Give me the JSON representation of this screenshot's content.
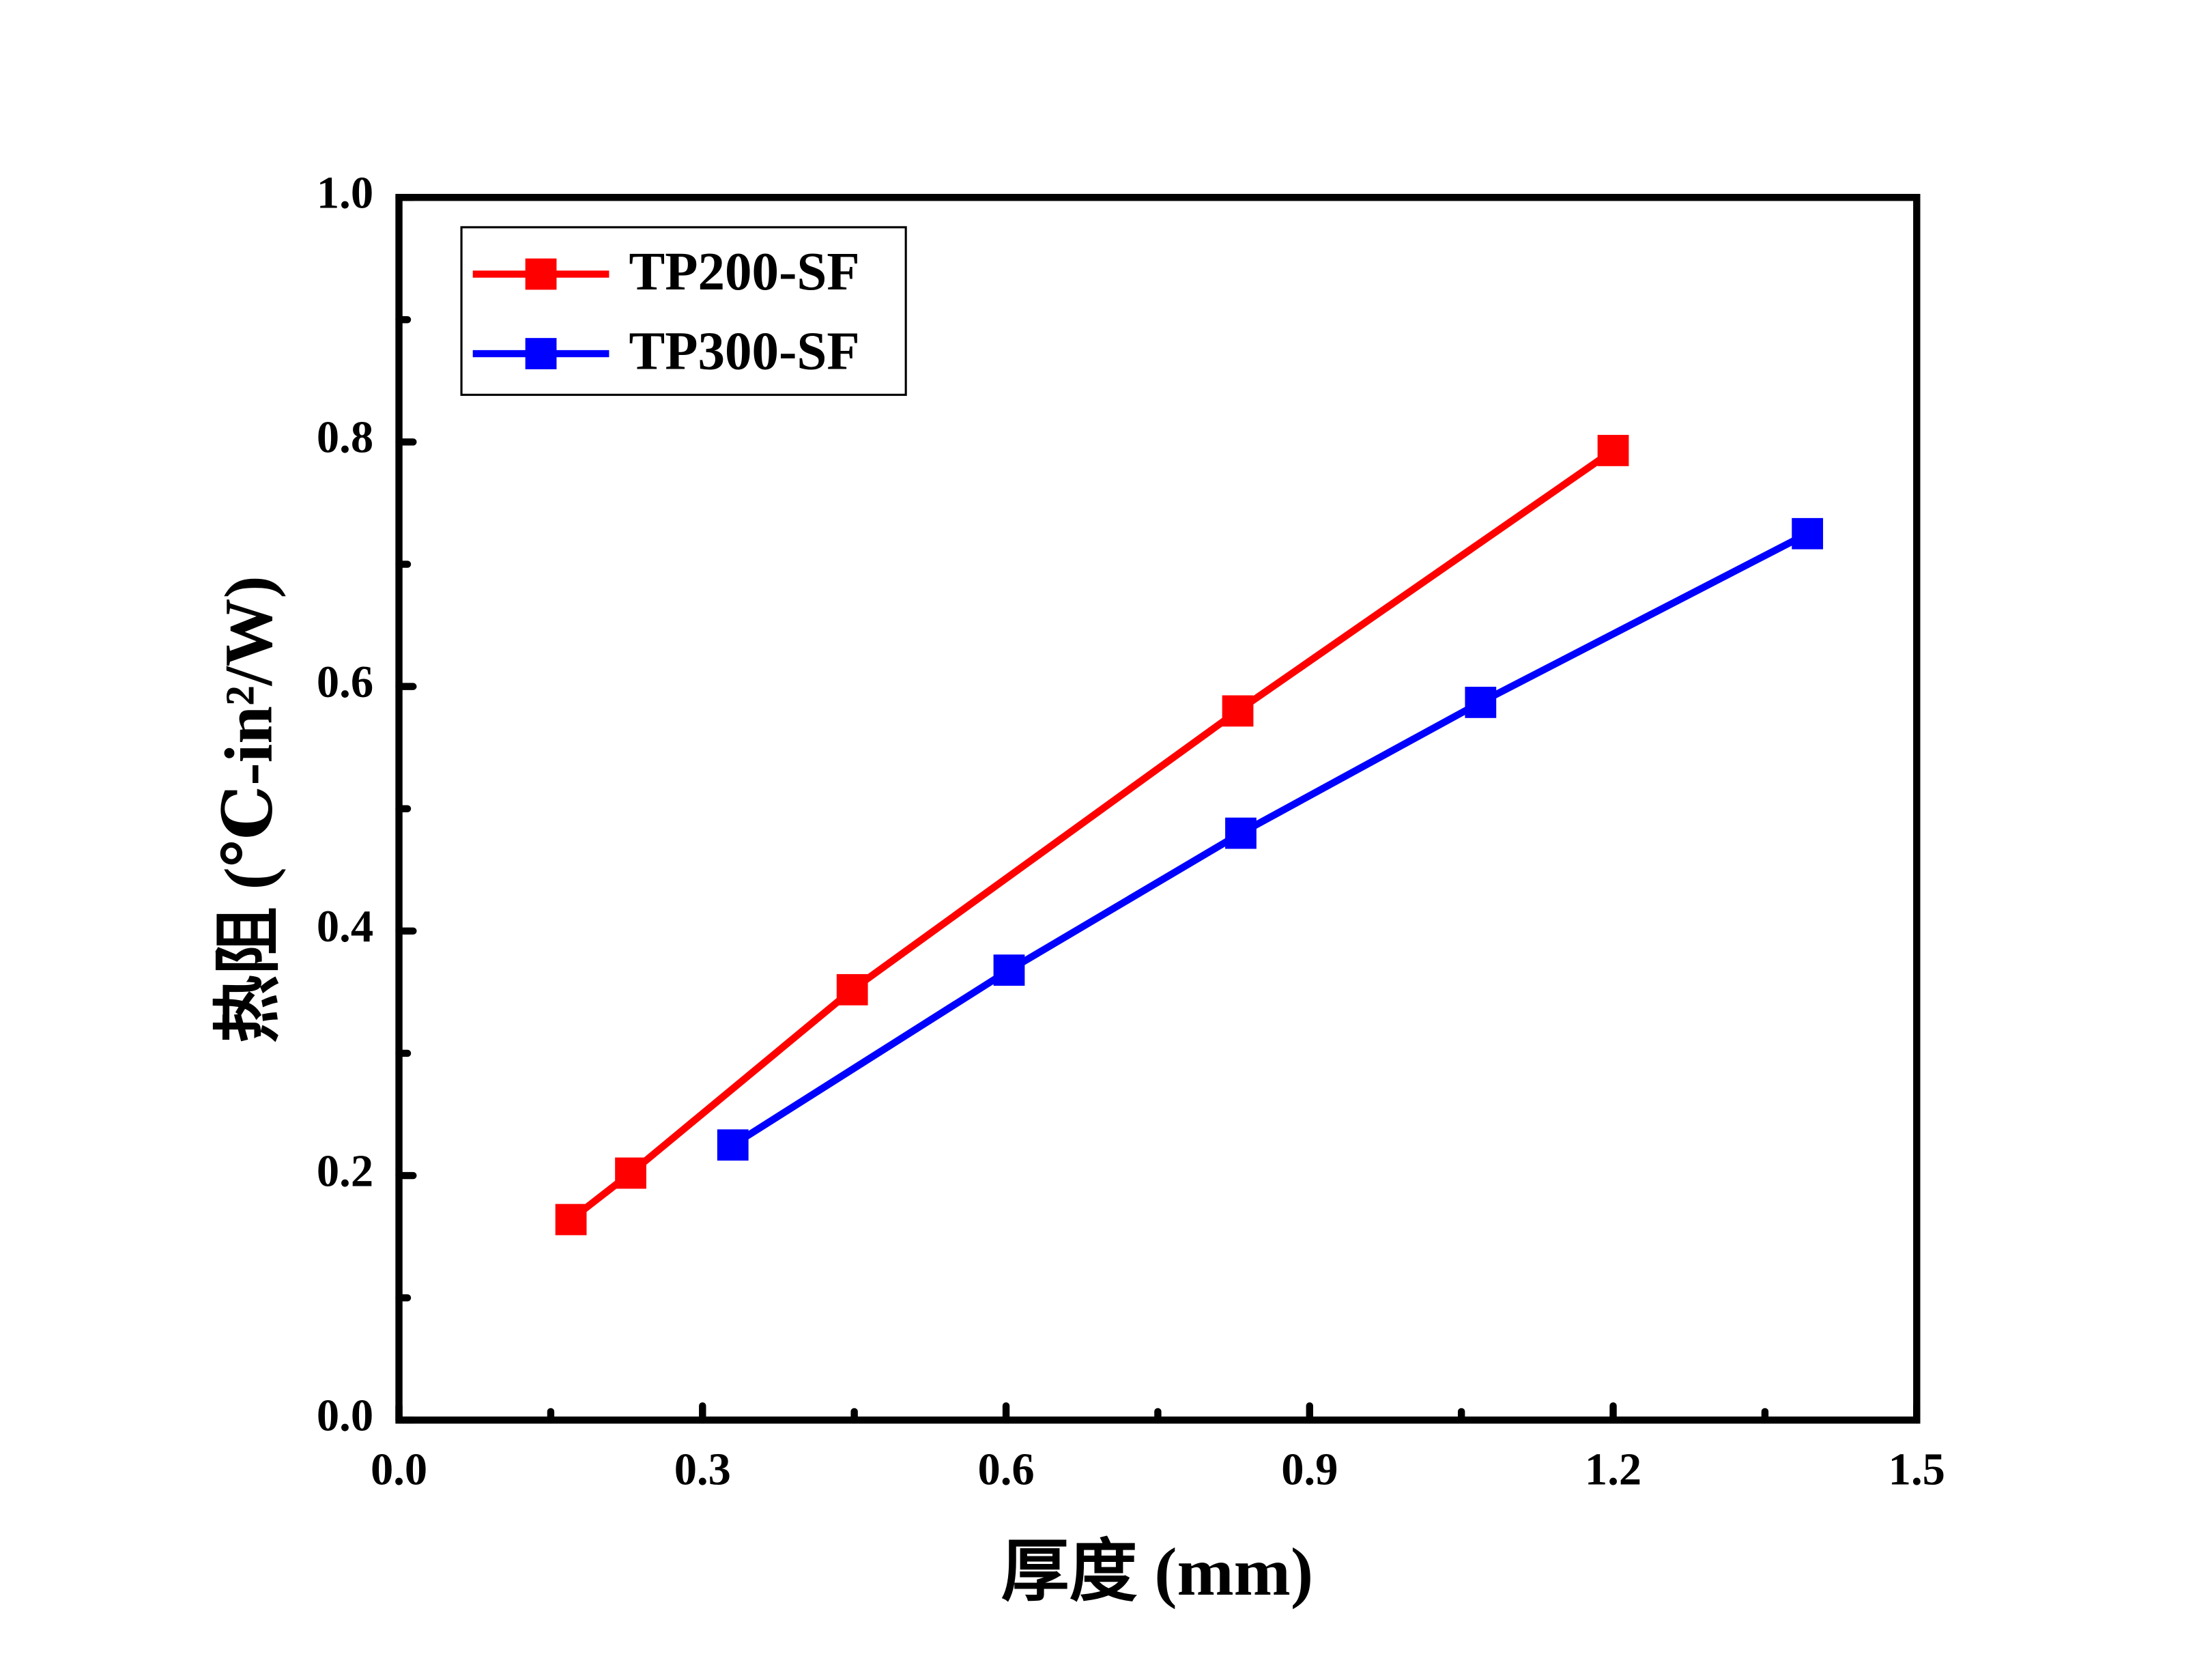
{
  "chart_data": {
    "type": "line",
    "x_label": "厚度 (mm)",
    "y_label": "热阻 (℃-in²/W)",
    "xlim": [
      0,
      1.5
    ],
    "ylim": [
      0,
      1
    ],
    "xticks": [
      {
        "value": 0,
        "label": "0.0"
      },
      0.3,
      0.6,
      0.9,
      1.2,
      1.5
    ],
    "yticks": [
      {
        "value": 0,
        "label": "0.0"
      },
      0.2,
      0.4,
      0.6,
      0.8,
      {
        "value": 1,
        "label": "1.0"
      }
    ],
    "legend": "upper left",
    "series": [
      {
        "name": "TP200-SF",
        "color": "#ff0000",
        "x": [
          0.17,
          0.229,
          0.448,
          0.829,
          1.2
        ],
        "values": [
          0.164,
          0.202,
          0.352,
          0.58,
          0.793
        ]
      },
      {
        "name": "TP300-SF",
        "color": "#0000ff",
        "x": [
          0.33,
          0.603,
          0.832,
          1.069,
          1.392
        ],
        "values": [
          0.225,
          0.368,
          0.48,
          0.587,
          0.725
        ]
      }
    ]
  }
}
